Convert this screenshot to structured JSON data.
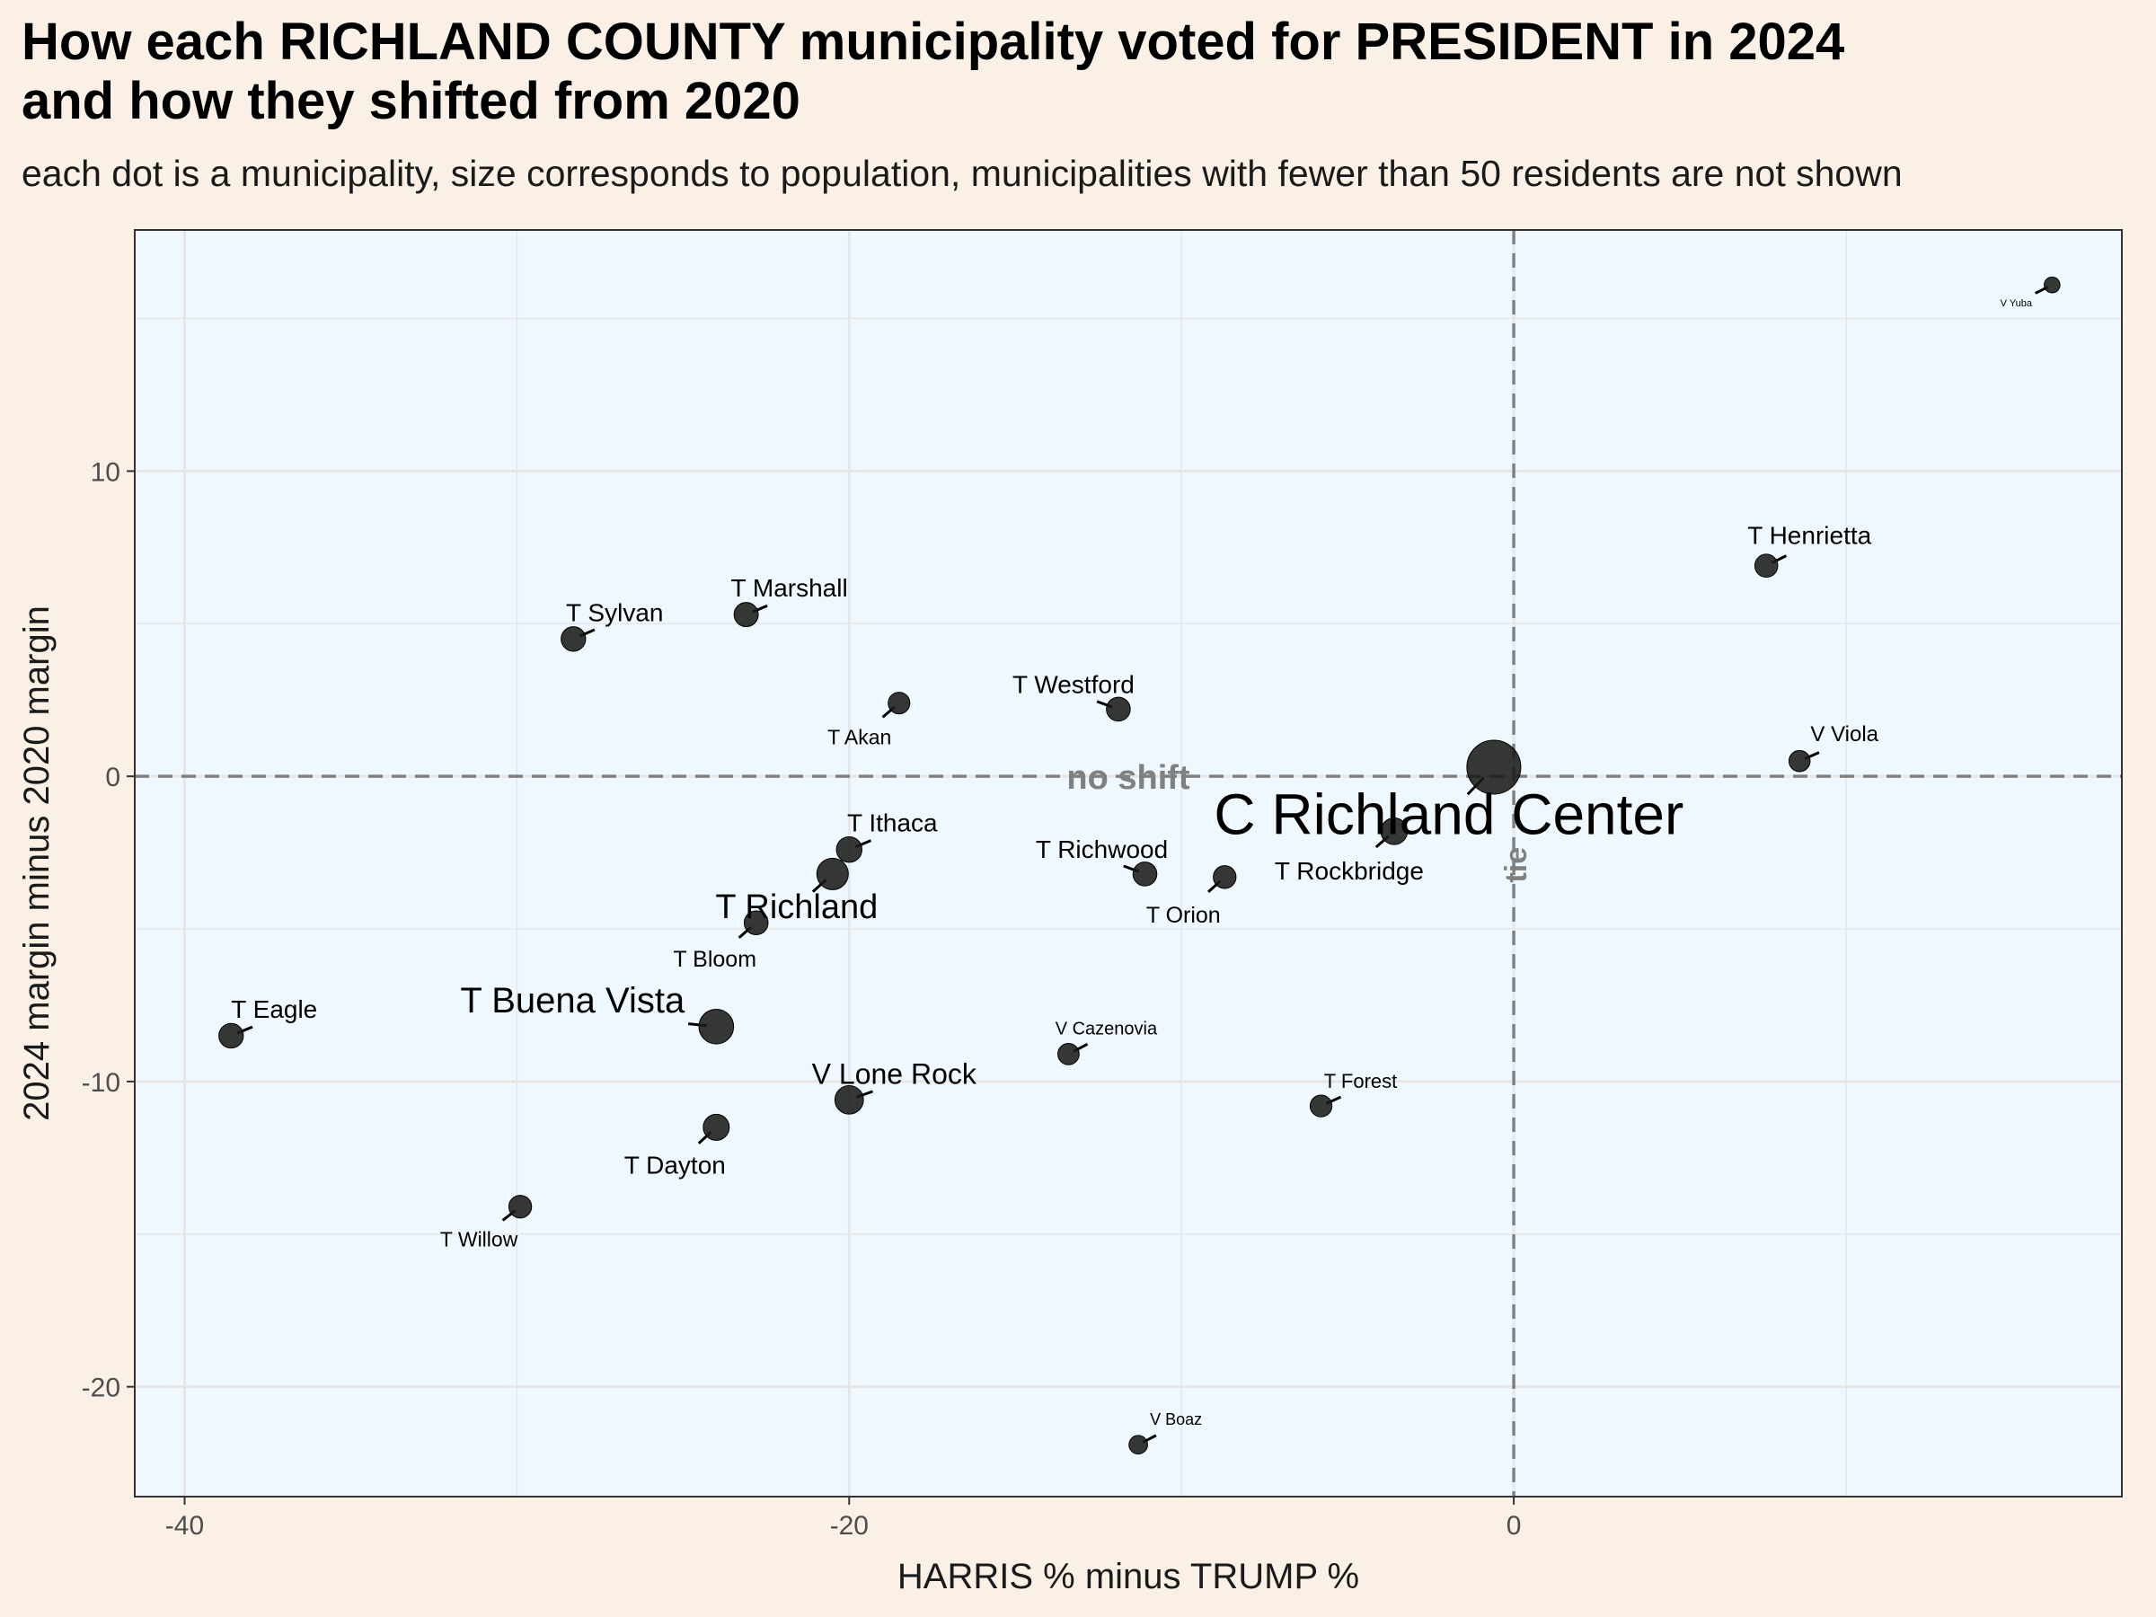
{
  "title_lines": [
    "How each RICHLAND COUNTY municipality voted for PRESIDENT in 2024",
    "and how they shifted from 2020"
  ],
  "subtitle": "each dot is a municipality, size corresponds to population, municipalities with fewer than 50 residents are not shown",
  "chart_data": {
    "type": "scatter",
    "xlabel": "HARRIS % minus TRUMP %",
    "ylabel": "2024 margin minus 2020 margin",
    "xlim": [
      -41.5,
      18.3
    ],
    "ylim": [
      -23.6,
      17.9
    ],
    "xticks": [
      -40,
      -20,
      0
    ],
    "yticks": [
      -20,
      -10,
      0,
      10
    ],
    "grid": true,
    "reference_lines": [
      {
        "axis": "y",
        "value": 0,
        "label": "no shift"
      },
      {
        "axis": "x",
        "value": 0,
        "label": "tie"
      }
    ],
    "colors": {
      "panel": "#f0f8ff",
      "page": "#faf0e6",
      "point": "#1a1a1a",
      "reference": "#808080",
      "grid": "#e6e6e6"
    },
    "points": [
      {
        "name": "V Yuba",
        "x": 16.2,
        "y": 16.1,
        "pop": 70
      },
      {
        "name": "T Henrietta",
        "x": 7.6,
        "y": 6.9,
        "pop": 420
      },
      {
        "name": "V Viola",
        "x": 8.6,
        "y": 0.5,
        "pop": 300
      },
      {
        "name": "C Richland Center",
        "x": -0.6,
        "y": 0.3,
        "pop": 5200
      },
      {
        "name": "T Westford",
        "x": -11.9,
        "y": 2.2,
        "pop": 480
      },
      {
        "name": "T Akan",
        "x": -18.5,
        "y": 2.4,
        "pop": 330
      },
      {
        "name": "T Marshall",
        "x": -23.1,
        "y": 5.3,
        "pop": 500
      },
      {
        "name": "T Sylvan",
        "x": -28.3,
        "y": 4.5,
        "pop": 530
      },
      {
        "name": "T Ithaca",
        "x": -20.0,
        "y": -2.4,
        "pop": 610
      },
      {
        "name": "T Richland",
        "x": -20.5,
        "y": -3.2,
        "pop": 1200
      },
      {
        "name": "T Bloom",
        "x": -22.8,
        "y": -4.8,
        "pop": 480
      },
      {
        "name": "T Richwood",
        "x": -11.1,
        "y": -3.2,
        "pop": 480
      },
      {
        "name": "T Orion",
        "x": -8.7,
        "y": -3.3,
        "pop": 400
      },
      {
        "name": "T Rockbridge",
        "x": -3.6,
        "y": -1.8,
        "pop": 700
      },
      {
        "name": "T Buena Vista",
        "x": -24.0,
        "y": -8.2,
        "pop": 1600
      },
      {
        "name": "T Eagle",
        "x": -38.6,
        "y": -8.5,
        "pop": 530
      },
      {
        "name": "V Lone Rock",
        "x": -20.0,
        "y": -10.6,
        "pop": 880
      },
      {
        "name": "V Cazenovia",
        "x": -13.4,
        "y": -9.1,
        "pop": 310
      },
      {
        "name": "T Forest",
        "x": -5.8,
        "y": -10.8,
        "pop": 340
      },
      {
        "name": "T Dayton",
        "x": -24.0,
        "y": -11.5,
        "pop": 650
      },
      {
        "name": "T Willow",
        "x": -29.9,
        "y": -14.1,
        "pop": 400
      },
      {
        "name": "V Boaz",
        "x": -11.3,
        "y": -21.9,
        "pop": 170
      }
    ]
  }
}
